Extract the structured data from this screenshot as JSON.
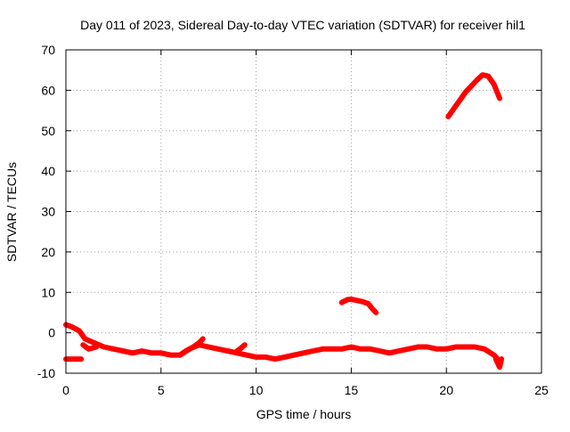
{
  "chart_data": {
    "type": "scatter",
    "title": "Day 011 of 2023, Sidereal Day-to-day VTEC variation (SDTVAR) for receiver hil1",
    "xlabel": "GPS time / hours",
    "ylabel": "SDTVAR / TECUs",
    "xlim": [
      0,
      25
    ],
    "ylim": [
      -10,
      70
    ],
    "xticks": [
      0,
      5,
      10,
      15,
      20,
      25
    ],
    "yticks": [
      -10,
      0,
      10,
      20,
      30,
      40,
      50,
      60,
      70
    ],
    "grid": true,
    "series_color": "#ff0000",
    "series": [
      {
        "name": "track-main",
        "x": [
          0.0,
          0.3,
          0.7,
          1.0,
          1.5,
          2.0,
          2.5,
          3.0,
          3.5,
          4.0,
          4.5,
          5.0,
          5.5,
          6.0,
          6.3,
          6.7,
          7.0,
          7.2
        ],
        "y": [
          2,
          1.5,
          0.5,
          -1.5,
          -2.5,
          -3.5,
          -4,
          -4.5,
          -5,
          -4.5,
          -5,
          -5,
          -5.5,
          -5.5,
          -4.5,
          -3.5,
          -2.5,
          -1.5
        ]
      },
      {
        "name": "track-low-start",
        "x": [
          0.0,
          0.3,
          0.6,
          0.8
        ],
        "y": [
          -6.5,
          -6.5,
          -6.5,
          -6.5
        ]
      },
      {
        "name": "track-dip",
        "x": [
          0.9,
          1.2,
          1.6
        ],
        "y": [
          -3,
          -4,
          -3.5
        ]
      },
      {
        "name": "track-mid",
        "x": [
          6.0,
          6.5,
          7.0,
          7.5,
          8.0,
          8.5,
          9.0,
          9.5,
          10.0,
          10.5,
          11.0,
          11.5,
          12.0,
          12.5,
          13.0,
          13.5,
          14.0,
          14.5,
          15.0,
          15.5,
          16.0,
          16.5,
          17.0,
          17.5,
          18.0,
          18.5,
          19.0,
          19.5,
          20.0,
          20.5,
          21.0,
          21.5,
          22.0,
          22.5,
          22.8
        ],
        "y": [
          -5.5,
          -4,
          -3,
          -3.5,
          -4,
          -4.5,
          -5,
          -5.5,
          -6,
          -6,
          -6.5,
          -6,
          -5.5,
          -5,
          -4.5,
          -4,
          -4,
          -4,
          -3.5,
          -4,
          -4,
          -4.5,
          -5,
          -4.5,
          -4,
          -3.5,
          -3.5,
          -4,
          -4,
          -3.5,
          -3.5,
          -3.5,
          -4,
          -5.5,
          -7
        ]
      },
      {
        "name": "track-spike",
        "x": [
          9.0,
          9.2,
          9.4
        ],
        "y": [
          -4.5,
          -3.8,
          -3
        ]
      },
      {
        "name": "track-15h",
        "x": [
          14.5,
          14.8,
          15.0,
          15.3,
          15.6,
          15.9,
          16.1,
          16.3
        ],
        "y": [
          7.5,
          8.2,
          8.3,
          8,
          7.7,
          7.2,
          6,
          5
        ]
      },
      {
        "name": "track-end-tail",
        "x": [
          22.6,
          22.8,
          22.9
        ],
        "y": [
          -6.5,
          -8.5,
          -6.5
        ]
      },
      {
        "name": "track-evening",
        "x": [
          20.1,
          20.4,
          20.7,
          21.0,
          21.3,
          21.6,
          21.9,
          22.2,
          22.5,
          22.8
        ],
        "y": [
          53.5,
          55.5,
          57.5,
          59.5,
          61,
          62.5,
          63.8,
          63.5,
          61.5,
          58
        ]
      }
    ]
  }
}
